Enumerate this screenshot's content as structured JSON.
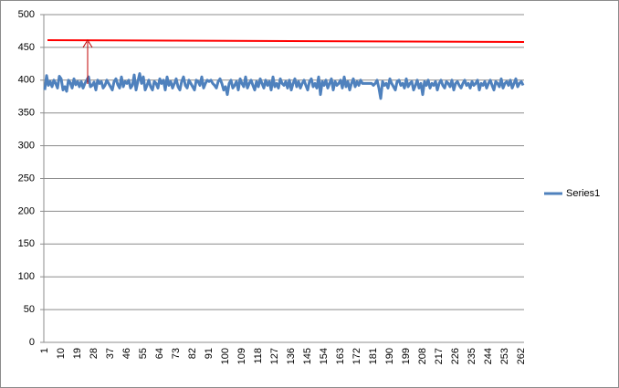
{
  "chart_data": {
    "type": "line",
    "categories": [
      "1",
      null,
      null,
      null,
      null,
      null,
      null,
      null,
      null,
      "10",
      null,
      null,
      null,
      null,
      null,
      null,
      null,
      null,
      "19",
      null,
      null,
      null,
      null,
      null,
      null,
      null,
      null,
      "28",
      null,
      null,
      null,
      null,
      null,
      null,
      null,
      null,
      "37",
      null,
      null,
      null,
      null,
      null,
      null,
      null,
      null,
      "46",
      null,
      null,
      null,
      null,
      null,
      null,
      null,
      null,
      "55",
      null,
      null,
      null,
      null,
      null,
      null,
      null,
      null,
      "64",
      null,
      null,
      null,
      null,
      null,
      null,
      null,
      null,
      "73",
      null,
      null,
      null,
      null,
      null,
      null,
      null,
      null,
      "82",
      null,
      null,
      null,
      null,
      null,
      null,
      null,
      null,
      "91",
      null,
      null,
      null,
      null,
      null,
      null,
      null,
      null,
      "100",
      null,
      null,
      null,
      null,
      null,
      null,
      null,
      null,
      "109",
      null,
      null,
      null,
      null,
      null,
      null,
      null,
      null,
      "118",
      null,
      null,
      null,
      null,
      null,
      null,
      null,
      null,
      "127",
      null,
      null,
      null,
      null,
      null,
      null,
      null,
      null,
      "136",
      null,
      null,
      null,
      null,
      null,
      null,
      null,
      null,
      "145",
      null,
      null,
      null,
      null,
      null,
      null,
      null,
      null,
      "154",
      null,
      null,
      null,
      null,
      null,
      null,
      null,
      null,
      "163",
      null,
      null,
      null,
      null,
      null,
      null,
      null,
      null,
      "172",
      null,
      null,
      null,
      null,
      null,
      null,
      null,
      null,
      "181",
      null,
      null,
      null,
      null,
      null,
      null,
      null,
      null,
      "190",
      null,
      null,
      null,
      null,
      null,
      null,
      null,
      null,
      "199",
      null,
      null,
      null,
      null,
      null,
      null,
      null,
      null,
      "208",
      null,
      null,
      null,
      null,
      null,
      null,
      null,
      null,
      "217",
      null,
      null,
      null,
      null,
      null,
      null,
      null,
      null,
      "226",
      null,
      null,
      null,
      null,
      null,
      null,
      null,
      null,
      "235",
      null,
      null,
      null,
      null,
      null,
      null,
      null,
      null,
      "244",
      null,
      null,
      null,
      null,
      null,
      null,
      null,
      null,
      "253",
      null,
      null,
      null,
      null,
      null,
      null,
      null,
      null,
      "262",
      null
    ],
    "series": [
      {
        "name": "Series1",
        "color": "#4f81bd",
        "values": [
          385,
          407,
          392,
          398,
          390,
          400,
          395,
          388,
          406,
          402,
          385,
          390,
          383,
          400,
          396,
          388,
          402,
          393,
          398,
          390,
          398,
          388,
          395,
          400,
          405,
          390,
          392,
          397,
          385,
          400,
          395,
          398,
          388,
          392,
          400,
          395,
          390,
          385,
          398,
          402,
          393,
          388,
          405,
          390,
          398,
          395,
          400,
          388,
          392,
          408,
          385,
          398,
          410,
          395,
          405,
          385,
          392,
          400,
          390,
          385,
          398,
          395,
          388,
          402,
          395,
          400,
          385,
          405,
          392,
          398,
          388,
          395,
          402,
          390,
          385,
          398,
          405,
          392,
          388,
          400,
          395,
          390,
          385,
          400,
          398,
          392,
          405,
          388,
          395,
          400,
          398,
          400,
          395,
          392,
          388,
          398,
          402,
          395,
          385,
          390,
          378,
          395,
          400,
          388,
          392,
          398,
          385,
          402,
          395,
          390,
          405,
          388,
          395,
          400,
          392,
          385,
          398,
          390,
          402,
          395,
          388,
          400,
          392,
          398,
          385,
          405,
          390,
          395,
          388,
          402,
          395,
          392,
          398,
          388,
          400,
          385,
          395,
          402,
          390,
          398,
          388,
          395,
          400,
          392,
          385,
          398,
          402,
          390,
          395,
          388,
          405,
          378,
          398,
          392,
          400,
          388,
          395,
          402,
          385,
          398,
          392,
          395,
          400,
          388,
          405,
          390,
          398,
          385,
          395,
          402,
          390,
          398,
          392,
          400,
          395,
          395,
          395,
          395,
          395,
          395,
          392,
          395,
          400,
          388,
          372,
          398,
          392,
          395,
          388,
          402,
          395,
          390,
          385,
          398,
          400,
          392,
          395,
          388,
          402,
          390,
          395,
          398,
          385,
          392,
          400,
          388,
          395,
          378,
          398,
          392,
          400,
          388,
          395,
          392,
          398,
          385,
          395,
          400,
          392,
          388,
          398,
          395,
          390,
          400,
          385,
          395,
          398,
          392,
          388,
          395,
          400,
          392,
          395,
          388,
          398,
          392,
          395,
          400,
          385,
          395,
          392,
          398,
          388,
          395,
          400,
          392,
          385,
          398,
          395,
          390,
          402,
          388,
          395,
          398,
          392,
          400,
          388,
          395,
          402,
          390,
          395,
          398,
          392
        ]
      }
    ],
    "ylim": [
      0,
      500
    ],
    "yticks": [
      0,
      50,
      100,
      150,
      200,
      250,
      300,
      350,
      400,
      450,
      500
    ],
    "grid": true,
    "legend": "right"
  }
}
